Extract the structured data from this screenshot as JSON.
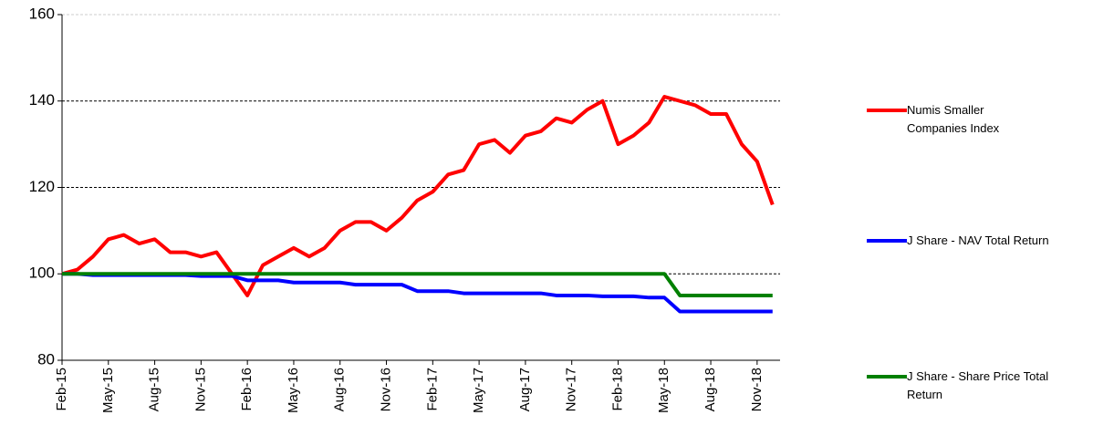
{
  "chart_data": {
    "type": "line",
    "categories": [
      "Feb-15",
      null,
      null,
      "May-15",
      null,
      null,
      "Aug-15",
      null,
      null,
      "Nov-15",
      null,
      null,
      "Feb-16",
      null,
      null,
      "May-16",
      null,
      null,
      "Aug-16",
      null,
      null,
      "Nov-16",
      null,
      null,
      "Feb-17",
      null,
      null,
      "May-17",
      null,
      null,
      "Aug-17",
      null,
      null,
      "Nov-17",
      null,
      null,
      "Feb-18",
      null,
      null,
      "May-18",
      null,
      null,
      "Aug-18",
      null,
      null,
      "Nov-18",
      null
    ],
    "series": [
      {
        "name": "Numis Smaller Companies Index",
        "color": "#ff0000",
        "values": [
          100,
          101,
          104,
          108,
          109,
          107,
          108,
          105,
          105,
          104,
          105,
          100,
          95,
          102,
          104,
          106,
          104,
          106,
          110,
          112,
          112,
          110,
          113,
          117,
          119,
          123,
          124,
          130,
          131,
          128,
          132,
          133,
          136,
          135,
          138,
          140,
          130,
          132,
          135,
          141,
          140,
          139,
          137,
          137,
          130,
          126,
          116
        ]
      },
      {
        "name": "J Share  - NAV Total Return",
        "color": "#0000ff",
        "values": [
          100,
          100,
          99.7,
          99.7,
          99.7,
          99.7,
          99.7,
          99.7,
          99.7,
          99.5,
          99.5,
          99.5,
          98.5,
          98.5,
          98.5,
          98,
          98,
          98,
          98,
          97.5,
          97.5,
          97.5,
          97.5,
          96,
          96,
          96,
          95.5,
          95.5,
          95.5,
          95.5,
          95.5,
          95.5,
          95,
          95,
          95,
          94.8,
          94.8,
          94.8,
          94.5,
          94.5,
          91.3,
          91.3,
          91.3,
          91.3,
          91.3,
          91.3,
          91.3
        ]
      },
      {
        "name": "J Share - Share Price Total Return",
        "color": "#008000",
        "values": [
          100,
          100,
          100,
          100,
          100,
          100,
          100,
          100,
          100,
          100,
          100,
          100,
          100,
          100,
          100,
          100,
          100,
          100,
          100,
          100,
          100,
          100,
          100,
          100,
          100,
          100,
          100,
          100,
          100,
          100,
          100,
          100,
          100,
          100,
          100,
          100,
          100,
          100,
          100,
          100,
          95,
          95,
          95,
          95,
          95,
          95,
          95
        ]
      }
    ],
    "ylim": [
      80,
      160
    ],
    "yticks": [
      80,
      100,
      120,
      140,
      160
    ],
    "grid": true
  }
}
